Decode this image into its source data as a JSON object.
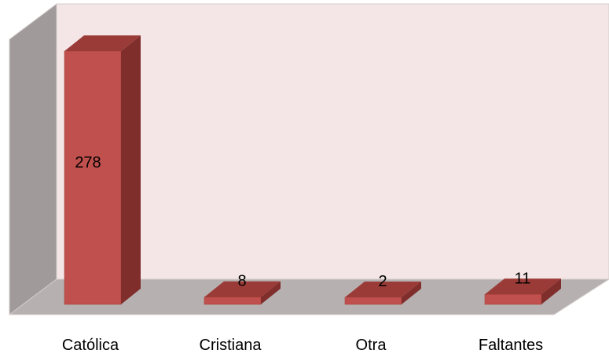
{
  "chart_data": {
    "type": "bar",
    "three_d": true,
    "categories": [
      "Católica",
      "Cristiana",
      "Otra",
      "Faltantes"
    ],
    "values": [
      278,
      8,
      2,
      11
    ],
    "data_labels": [
      "278",
      "8",
      "2",
      "11"
    ],
    "title": "",
    "xlabel": "",
    "ylabel": "",
    "ylim": [
      0,
      300
    ],
    "grid": false,
    "legend": "none"
  },
  "colors": {
    "bar_front": "#c0504d",
    "bar_side": "#7f2e2c",
    "bar_top": "#9b3b38",
    "back_wall": "#f4e6e6",
    "side_wall": "#a09a9a",
    "floor": "#b7b0b0",
    "wall_edge": "#d4cccc"
  }
}
